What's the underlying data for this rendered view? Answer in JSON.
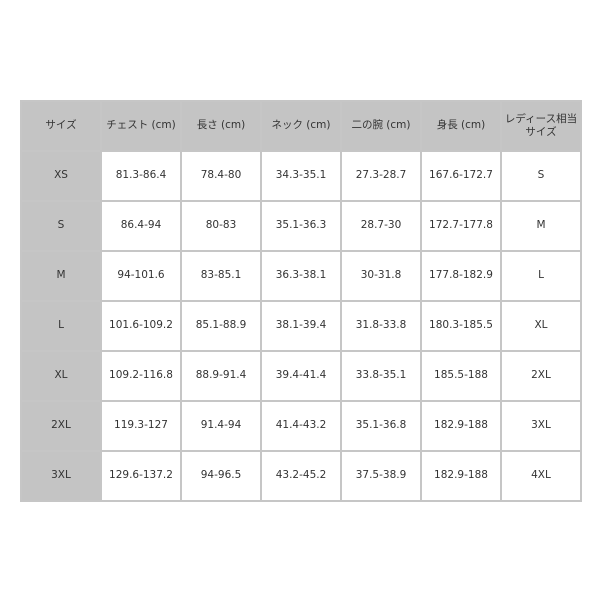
{
  "headers": [
    "サイズ",
    "チェスト (cm)",
    "長さ (cm)",
    "ネック (cm)",
    "二の腕 (cm)",
    "身長 (cm)",
    "レディース相当サイズ"
  ],
  "rows": [
    [
      "XS",
      "81.3-86.4",
      "78.4-80",
      "34.3-35.1",
      "27.3-28.7",
      "167.6-172.7",
      "S"
    ],
    [
      "S",
      "86.4-94",
      "80-83",
      "35.1-36.3",
      "28.7-30",
      "172.7-177.8",
      "M"
    ],
    [
      "M",
      "94-101.6",
      "83-85.1",
      "36.3-38.1",
      "30-31.8",
      "177.8-182.9",
      "L"
    ],
    [
      "L",
      "101.6-109.2",
      "85.1-88.9",
      "38.1-39.4",
      "31.8-33.8",
      "180.3-185.5",
      "XL"
    ],
    [
      "XL",
      "109.2-116.8",
      "88.9-91.4",
      "39.4-41.4",
      "33.8-35.1",
      "185.5-188",
      "2XL"
    ],
    [
      "2XL",
      "119.3-127",
      "91.4-94",
      "41.4-43.2",
      "35.1-36.8",
      "182.9-188",
      "3XL"
    ],
    [
      "3XL",
      "129.6-137.2",
      "94-96.5",
      "43.2-45.2",
      "37.5-38.9",
      "182.9-188",
      "4XL"
    ]
  ]
}
